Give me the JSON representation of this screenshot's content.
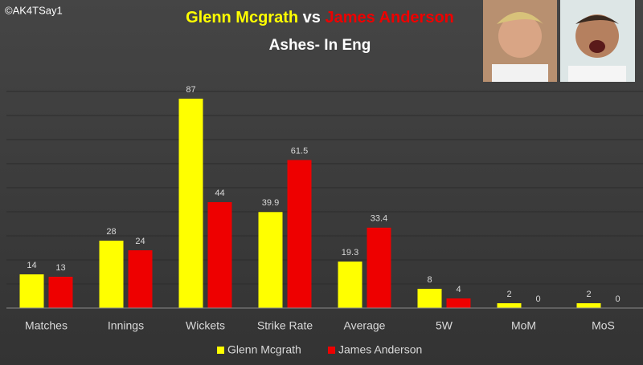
{
  "chart_data": {
    "type": "bar",
    "watermark": "©AK4TSay1",
    "title_segments": [
      "Glenn Mcgrath",
      "vs",
      "James Anderson"
    ],
    "subtitle": "Ashes- In Eng",
    "categories": [
      "Matches",
      "Innings",
      "Wickets",
      "Strike Rate",
      "Average",
      "5W",
      "MoM",
      "MoS"
    ],
    "series": [
      {
        "name": "Glenn Mcgrath",
        "color": "#ffff00",
        "values": [
          14,
          28,
          87,
          39.9,
          19.3,
          8,
          2,
          2
        ]
      },
      {
        "name": "James Anderson",
        "color": "#ee0000",
        "values": [
          13,
          24,
          44,
          61.5,
          33.4,
          4,
          0,
          0
        ]
      }
    ],
    "ylim": [
      0,
      90
    ],
    "yticks": [
      0,
      10,
      20,
      30,
      40,
      50,
      60,
      70,
      80,
      90
    ],
    "grid": true
  }
}
